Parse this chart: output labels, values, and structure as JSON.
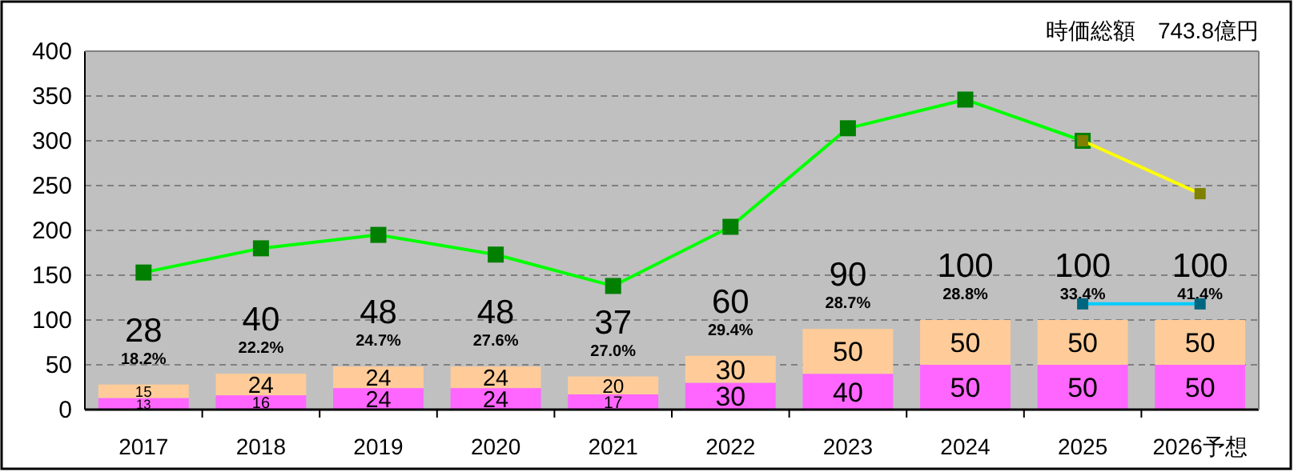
{
  "chart_data": {
    "type": "bar",
    "stacked": true,
    "subtitle": "時価総額　743.8億円",
    "categories": [
      "2017",
      "2018",
      "2019",
      "2020",
      "2021",
      "2022",
      "2023",
      "2024",
      "2025",
      "2026予想"
    ],
    "series": [
      {
        "color": "#ff66ff",
        "values": [
          13,
          16,
          24,
          24,
          17,
          30,
          40,
          50,
          50,
          50
        ],
        "value_labels": [
          "13",
          "16",
          "24",
          "24",
          "17",
          "30",
          "40",
          "50",
          "50",
          "50"
        ]
      },
      {
        "color": "#ffcc99",
        "values": [
          15,
          24,
          24,
          24,
          20,
          30,
          50,
          50,
          50,
          50
        ],
        "value_labels": [
          "15",
          "24",
          "24",
          "24",
          "20",
          "30",
          "50",
          "50",
          "50",
          "50"
        ]
      },
      {
        "type": "line",
        "color": "#00ff00",
        "marker": "square",
        "values": [
          153,
          180,
          195,
          173,
          138,
          204,
          314,
          346,
          300,
          null
        ]
      },
      {
        "type": "line",
        "color": "#ffff00",
        "marker": "square",
        "values": [
          null,
          null,
          null,
          null,
          null,
          null,
          null,
          null,
          300,
          241
        ]
      },
      {
        "type": "line",
        "color": "#00ccff",
        "marker": "square",
        "values": [
          null,
          null,
          null,
          null,
          null,
          null,
          null,
          null,
          118,
          118
        ]
      }
    ],
    "ylim": [
      0,
      400
    ],
    "yticks": [
      0,
      50,
      100,
      150,
      200,
      250,
      300,
      350,
      400
    ],
    "grid": "y",
    "totals": [
      "28",
      "40",
      "48",
      "48",
      "37",
      "60",
      "90",
      "100",
      "100",
      "100"
    ],
    "annotations": [
      {
        "text": "18.2%",
        "x": "2017",
        "y": 28
      },
      {
        "text": "22.2%",
        "x": "2018",
        "y": 40
      },
      {
        "text": "24.7%",
        "x": "2019",
        "y": 48
      },
      {
        "text": "27.6%",
        "x": "2020",
        "y": 48
      },
      {
        "text": "27.0%",
        "x": "2021",
        "y": 37
      },
      {
        "text": "29.4%",
        "x": "2022",
        "y": 60
      },
      {
        "text": "28.7%",
        "x": "2023",
        "y": 90
      },
      {
        "text": "28.8%",
        "x": "2024",
        "y": 100
      },
      {
        "text": "33.4%",
        "x": "2025",
        "y": 100
      },
      {
        "text": "41.4%",
        "x": "2026予想",
        "y": 100
      }
    ]
  }
}
